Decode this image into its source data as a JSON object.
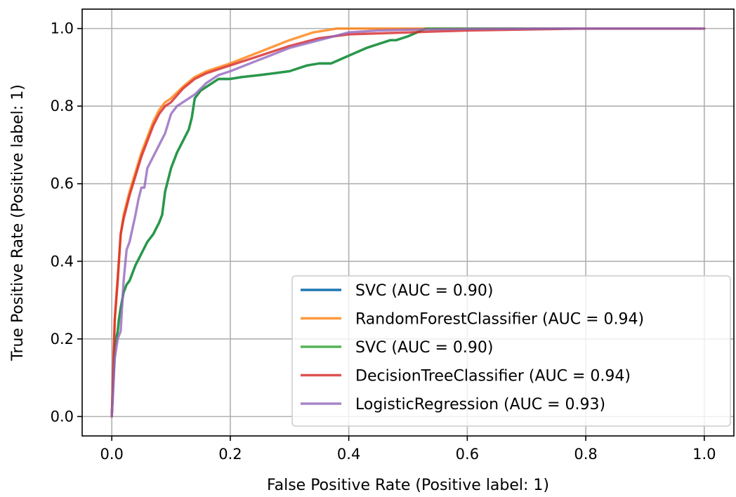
{
  "chart_data": {
    "type": "line",
    "title": "",
    "xlabel": "False Positive Rate (Positive label: 1)",
    "ylabel": "True Positive Rate (Positive label: 1)",
    "xlim": [
      -0.05,
      1.05
    ],
    "ylim": [
      -0.05,
      1.05
    ],
    "xticks": [
      "0.0",
      "0.2",
      "0.4",
      "0.6",
      "0.8",
      "1.0"
    ],
    "yticks": [
      "0.0",
      "0.2",
      "0.4",
      "0.6",
      "0.8",
      "1.0"
    ],
    "grid": true,
    "legend_position": "lower-right",
    "series": [
      {
        "name": "SVC (AUC = 0.90)",
        "color": "#1f77b4",
        "x": [
          0,
          0.005,
          0.01,
          0.012,
          0.015,
          0.02,
          0.025,
          0.03,
          0.035,
          0.04,
          0.05,
          0.06,
          0.07,
          0.08,
          0.085,
          0.09,
          0.1,
          0.11,
          0.12,
          0.13,
          0.135,
          0.14,
          0.15,
          0.16,
          0.18,
          0.2,
          0.22,
          0.25,
          0.3,
          0.32,
          0.33,
          0.35,
          0.37,
          0.4,
          0.43,
          0.47,
          0.48,
          0.5,
          0.53,
          0.6,
          0.8,
          1.0
        ],
        "y": [
          0,
          0.18,
          0.22,
          0.25,
          0.28,
          0.32,
          0.34,
          0.35,
          0.37,
          0.39,
          0.42,
          0.45,
          0.47,
          0.5,
          0.52,
          0.58,
          0.64,
          0.68,
          0.71,
          0.74,
          0.77,
          0.82,
          0.84,
          0.85,
          0.87,
          0.87,
          0.875,
          0.88,
          0.89,
          0.9,
          0.905,
          0.91,
          0.91,
          0.93,
          0.95,
          0.97,
          0.97,
          0.98,
          1.0,
          1.0,
          1.0,
          1.0
        ]
      },
      {
        "name": "RandomForestClassifier (AUC = 0.94)",
        "color": "#ff7f0e",
        "x": [
          0,
          0.005,
          0.01,
          0.015,
          0.02,
          0.03,
          0.04,
          0.05,
          0.06,
          0.07,
          0.08,
          0.09,
          0.1,
          0.12,
          0.14,
          0.16,
          0.18,
          0.2,
          0.25,
          0.3,
          0.34,
          0.38,
          0.4,
          0.5,
          0.6,
          0.8,
          1.0
        ],
        "y": [
          0,
          0.25,
          0.36,
          0.47,
          0.52,
          0.58,
          0.63,
          0.68,
          0.72,
          0.76,
          0.79,
          0.81,
          0.82,
          0.85,
          0.875,
          0.89,
          0.9,
          0.91,
          0.94,
          0.97,
          0.99,
          1.0,
          1.0,
          1.0,
          1.0,
          1.0,
          1.0
        ]
      },
      {
        "name": "SVC (AUC = 0.90)",
        "color": "#2ca02c",
        "x": [
          0,
          0.005,
          0.01,
          0.012,
          0.015,
          0.02,
          0.025,
          0.03,
          0.035,
          0.04,
          0.05,
          0.06,
          0.07,
          0.08,
          0.085,
          0.09,
          0.1,
          0.11,
          0.12,
          0.13,
          0.135,
          0.14,
          0.15,
          0.16,
          0.18,
          0.2,
          0.22,
          0.25,
          0.3,
          0.32,
          0.33,
          0.35,
          0.37,
          0.4,
          0.43,
          0.47,
          0.48,
          0.5,
          0.53,
          0.6,
          0.8,
          1.0
        ],
        "y": [
          0,
          0.18,
          0.22,
          0.25,
          0.28,
          0.32,
          0.34,
          0.35,
          0.37,
          0.39,
          0.42,
          0.45,
          0.47,
          0.5,
          0.52,
          0.58,
          0.64,
          0.68,
          0.71,
          0.74,
          0.77,
          0.82,
          0.84,
          0.85,
          0.87,
          0.87,
          0.875,
          0.88,
          0.89,
          0.9,
          0.905,
          0.91,
          0.91,
          0.93,
          0.95,
          0.97,
          0.97,
          0.98,
          1.0,
          1.0,
          1.0,
          1.0
        ]
      },
      {
        "name": "DecisionTreeClassifier (AUC = 0.94)",
        "color": "#d62728",
        "x": [
          0,
          0.005,
          0.01,
          0.015,
          0.02,
          0.03,
          0.04,
          0.05,
          0.06,
          0.07,
          0.08,
          0.09,
          0.1,
          0.12,
          0.14,
          0.16,
          0.18,
          0.2,
          0.25,
          0.3,
          0.35,
          0.4,
          0.5,
          0.6,
          0.8,
          1.0
        ],
        "y": [
          0,
          0.25,
          0.35,
          0.47,
          0.51,
          0.57,
          0.62,
          0.67,
          0.71,
          0.75,
          0.78,
          0.8,
          0.81,
          0.845,
          0.87,
          0.885,
          0.895,
          0.905,
          0.93,
          0.955,
          0.975,
          0.985,
          0.99,
          0.995,
          1.0,
          1.0
        ]
      },
      {
        "name": "LogisticRegression (AUC = 0.93)",
        "color": "#9467bd",
        "x": [
          0,
          0.005,
          0.01,
          0.015,
          0.02,
          0.025,
          0.03,
          0.04,
          0.045,
          0.05,
          0.055,
          0.06,
          0.07,
          0.08,
          0.09,
          0.1,
          0.11,
          0.12,
          0.14,
          0.16,
          0.18,
          0.2,
          0.25,
          0.3,
          0.35,
          0.4,
          0.45,
          0.5,
          0.6,
          0.8,
          1.0
        ],
        "y": [
          0,
          0.15,
          0.2,
          0.22,
          0.35,
          0.43,
          0.45,
          0.52,
          0.56,
          0.59,
          0.59,
          0.64,
          0.67,
          0.7,
          0.73,
          0.78,
          0.8,
          0.81,
          0.83,
          0.86,
          0.88,
          0.89,
          0.92,
          0.95,
          0.97,
          0.99,
          0.995,
          0.997,
          0.999,
          1.0,
          1.0
        ]
      }
    ]
  }
}
